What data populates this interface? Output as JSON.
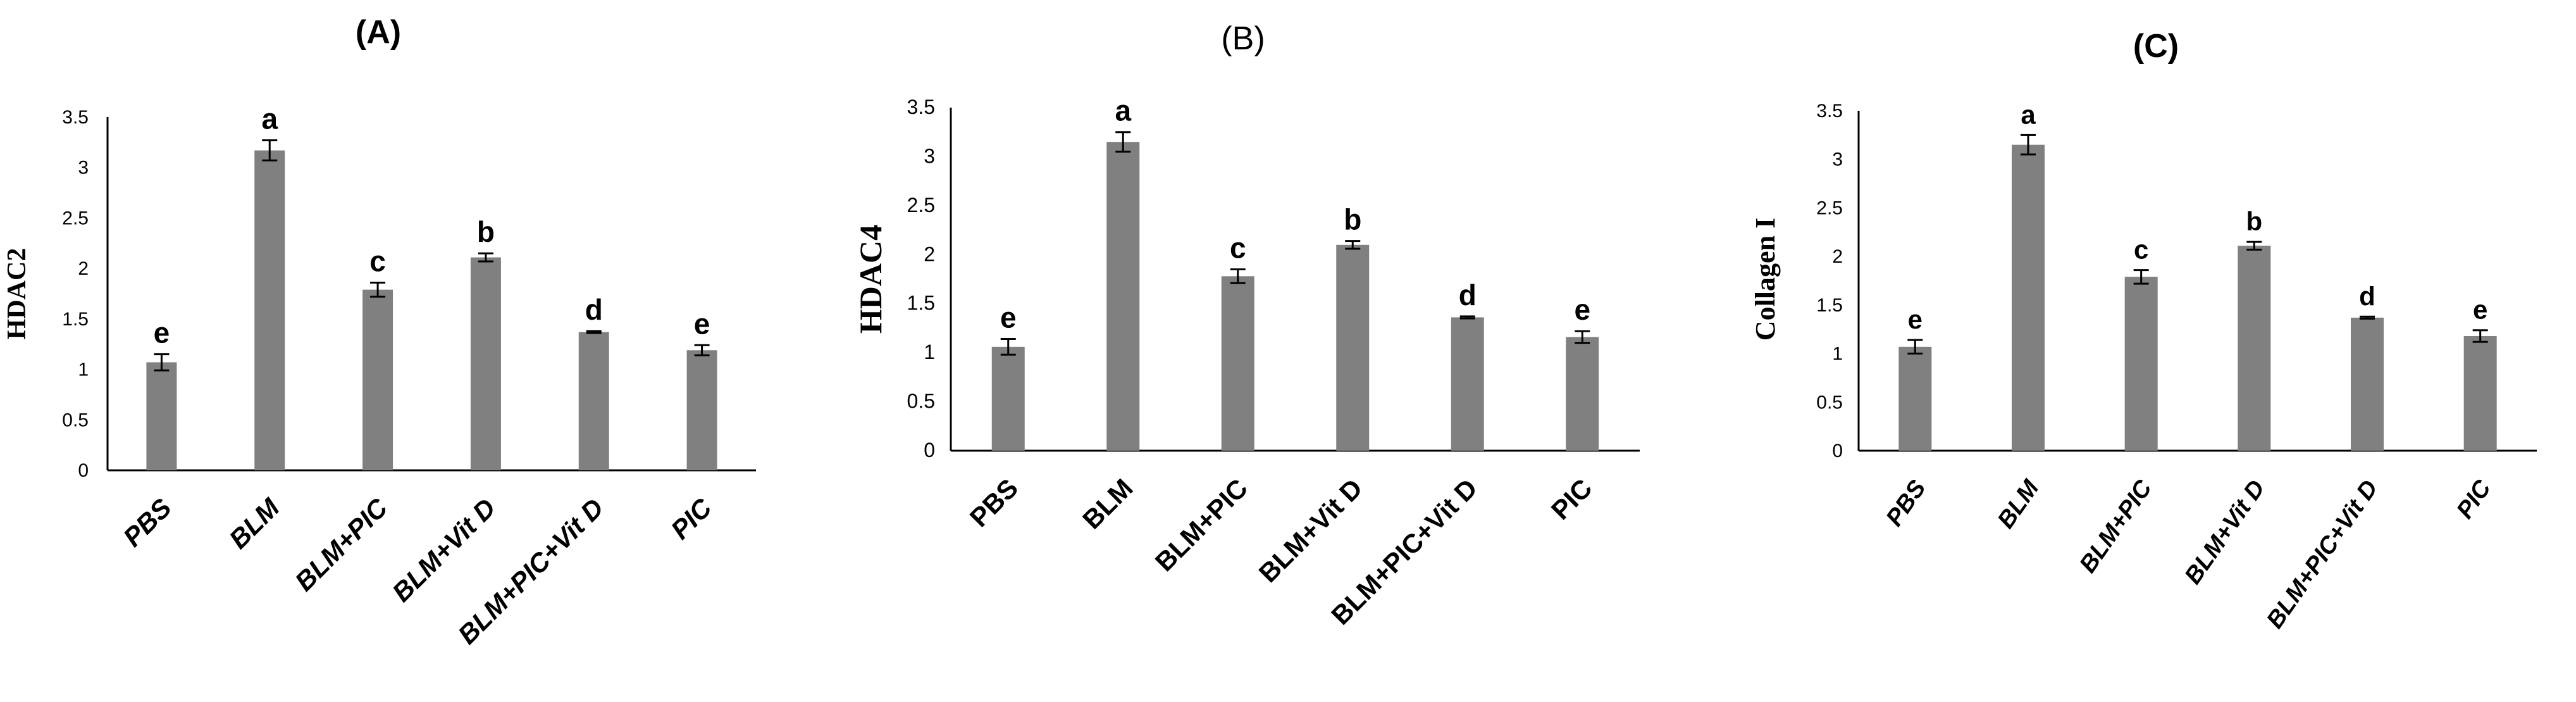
{
  "chart_data": [
    {
      "type": "bar",
      "title": "(A)",
      "ylabel": "HDAC2",
      "xlabel": "",
      "ylim": [
        0,
        3.5
      ],
      "yticks": [
        "0",
        "0.5",
        "1",
        "1.5",
        "2",
        "2.5",
        "3",
        "3.5"
      ],
      "categories": [
        "PBS",
        "BLM",
        "BLM+PIC",
        "BLM+Vit D",
        "BLM+PIC+Vit D",
        "PIC"
      ],
      "values": [
        1.07,
        3.17,
        1.79,
        2.11,
        1.37,
        1.19
      ],
      "errors": [
        0.08,
        0.1,
        0.07,
        0.04,
        0.01,
        0.05
      ],
      "significance": [
        "e",
        "a",
        "c",
        "b",
        "d",
        "e"
      ],
      "bar_color": "#808080"
    },
    {
      "type": "bar",
      "title": "(B)",
      "ylabel": "HDAC4",
      "xlabel": "",
      "ylim": [
        0,
        3.5
      ],
      "yticks": [
        "0",
        "0.5",
        "1",
        "1.5",
        "2",
        "2.5",
        "3",
        "3.5"
      ],
      "categories": [
        "PBS",
        "BLM",
        "BLM+PIC",
        "BLM+Vit D",
        "BLM+PIC+Vit D",
        "PIC"
      ],
      "values": [
        1.06,
        3.15,
        1.78,
        2.1,
        1.36,
        1.16
      ],
      "errors": [
        0.08,
        0.1,
        0.07,
        0.04,
        0.01,
        0.06
      ],
      "significance": [
        "e",
        "a",
        "c",
        "b",
        "d",
        "e"
      ],
      "bar_color": "#808080"
    },
    {
      "type": "bar",
      "title": "(C)",
      "ylabel": "Collagen I",
      "xlabel": "",
      "ylim": [
        0,
        3.5
      ],
      "yticks": [
        "0",
        "0.5",
        "1",
        "1.5",
        "2",
        "2.5",
        "3",
        "3.5"
      ],
      "categories": [
        "PBS",
        "BLM",
        "BLM+PIC",
        "BLM+Vit D",
        "BLM+PIC+Vit D",
        "PIC"
      ],
      "values": [
        1.07,
        3.15,
        1.79,
        2.11,
        1.37,
        1.18
      ],
      "errors": [
        0.07,
        0.1,
        0.07,
        0.04,
        0.01,
        0.06
      ],
      "significance": [
        "e",
        "a",
        "c",
        "b",
        "d",
        "e"
      ],
      "bar_color": "#808080"
    }
  ]
}
